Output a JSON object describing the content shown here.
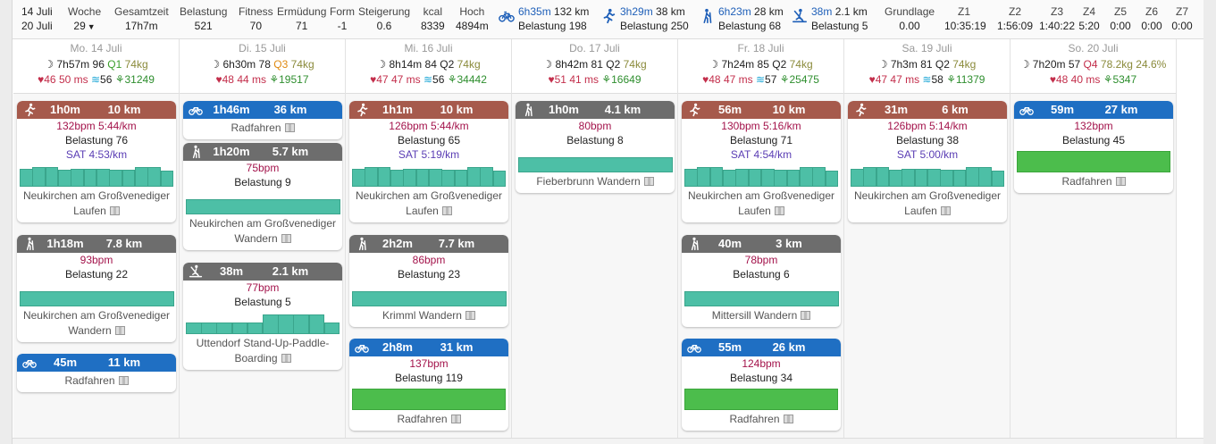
{
  "summary": {
    "dates": {
      "from": "14 Juli",
      "to": "20 Juli"
    },
    "woche": {
      "label": "Woche",
      "value": "29"
    },
    "gesamtzeit": {
      "label": "Gesamtzeit",
      "value": "17h7m"
    },
    "belastung": {
      "label": "Belastung",
      "value": "521"
    },
    "fitness": {
      "label": "Fitness",
      "value": "70"
    },
    "ermuedung": {
      "label": "Ermüdung",
      "value": "71"
    },
    "form": {
      "label": "Form",
      "value": "-1"
    },
    "steigerung": {
      "label": "Steigerung",
      "value": "0.6"
    },
    "kcal": {
      "label": "kcal",
      "value": "8339"
    },
    "hoch": {
      "label": "Hoch",
      "value": "4894m"
    },
    "sports": [
      {
        "icon": "bike-icon",
        "time": "6h35m",
        "dist": "132 km",
        "load": "Belastung 198"
      },
      {
        "icon": "run-icon",
        "time": "3h29m",
        "dist": "38 km",
        "load": "Belastung 250"
      },
      {
        "icon": "hike-icon",
        "time": "6h23m",
        "dist": "28 km",
        "load": "Belastung 68"
      },
      {
        "icon": "sup-icon",
        "time": "38m",
        "dist": "2.1 km",
        "load": "Belastung 5"
      }
    ],
    "grundlage": {
      "label": "Grundlage",
      "value": "0.00"
    },
    "zones": [
      {
        "label": "Z1",
        "value": "10:35:19"
      },
      {
        "label": "Z2",
        "value": "1:56:09"
      },
      {
        "label": "Z3",
        "value": "1:40:22"
      },
      {
        "label": "Z4",
        "value": "5:20"
      },
      {
        "label": "Z5",
        "value": "0:00"
      },
      {
        "label": "Z6",
        "value": "0:00"
      },
      {
        "label": "Z7",
        "value": "0:00"
      }
    ]
  },
  "days": [
    {
      "name": "Mo. 14 Juli",
      "sleep": "7h57m",
      "score": "96",
      "q": "Q1",
      "kg": "74kg",
      "hr": "46",
      "hrv": "50 ms",
      "wave": "56",
      "steps": "31249",
      "cards": [
        {
          "type": "run",
          "dur": "1h0m",
          "dist": "10 km",
          "bpm": "132bpm 5:44/km",
          "load": "Belastung 76",
          "sat": "SAT 4:53/km",
          "place": "Neukirchen am Großvenediger",
          "sport": "Laufen"
        },
        {
          "type": "hike",
          "dur": "1h18m",
          "dist": "7.8 km",
          "bpm": "93bpm",
          "load": "Belastung 22",
          "place": "Neukirchen am Großvenediger",
          "sport": "Wandern"
        },
        {
          "type": "bike",
          "dur": "45m",
          "dist": "11 km",
          "place": "",
          "sport": "Radfahren"
        }
      ]
    },
    {
      "name": "Di. 15 Juli",
      "sleep": "6h30m",
      "score": "78",
      "q": "Q3",
      "kg": "74kg",
      "hr": "48",
      "hrv": "44 ms",
      "steps": "19517",
      "cards": [
        {
          "type": "bike",
          "dur": "1h46m",
          "dist": "36 km",
          "place": "",
          "sport": "Radfahren"
        },
        {
          "type": "hike",
          "dur": "1h20m",
          "dist": "5.7 km",
          "bpm": "75bpm",
          "load": "Belastung 9",
          "place": "Neukirchen am Großvenediger",
          "sport": "Wandern"
        },
        {
          "type": "sup",
          "dur": "38m",
          "dist": "2.1 km",
          "bpm": "77bpm",
          "load": "Belastung 5",
          "place": "Uttendorf Stand-Up-Paddle-",
          "sport": "Boarding"
        }
      ]
    },
    {
      "name": "Mi. 16 Juli",
      "sleep": "8h14m",
      "score": "84",
      "q": "Q2",
      "kg": "74kg",
      "hr": "47",
      "hrv": "47 ms",
      "wave": "56",
      "steps": "34442",
      "cards": [
        {
          "type": "run",
          "dur": "1h1m",
          "dist": "10 km",
          "bpm": "126bpm 5:44/km",
          "load": "Belastung 65",
          "sat": "SAT 5:19/km",
          "place": "Neukirchen am Großvenediger",
          "sport": "Laufen"
        },
        {
          "type": "hike",
          "dur": "2h2m",
          "dist": "7.7 km",
          "bpm": "86bpm",
          "load": "Belastung 23",
          "place": "",
          "sport": "Krimml Wandern"
        },
        {
          "type": "bike",
          "dur": "2h8m",
          "dist": "31 km",
          "bpm": "137bpm",
          "load": "Belastung 119",
          "place": "",
          "sport": "Radfahren"
        }
      ]
    },
    {
      "name": "Do. 17 Juli",
      "sleep": "8h42m",
      "score": "81",
      "q": "Q2",
      "kg": "74kg",
      "hr": "51",
      "hrv": "41 ms",
      "steps": "16649",
      "cards": [
        {
          "type": "hike",
          "dur": "1h0m",
          "dist": "4.1 km",
          "bpm": "80bpm",
          "load": "Belastung 8",
          "place": "",
          "sport": "Fieberbrunn Wandern"
        }
      ]
    },
    {
      "name": "Fr. 18 Juli",
      "sleep": "7h24m",
      "score": "85",
      "q": "Q2",
      "kg": "74kg",
      "hr": "48",
      "hrv": "47 ms",
      "wave": "57",
      "steps": "25475",
      "cards": [
        {
          "type": "run",
          "dur": "56m",
          "dist": "10 km",
          "bpm": "130bpm 5:16/km",
          "load": "Belastung 71",
          "sat": "SAT 4:54/km",
          "place": "Neukirchen am Großvenediger",
          "sport": "Laufen"
        },
        {
          "type": "hike",
          "dur": "40m",
          "dist": "3 km",
          "bpm": "78bpm",
          "load": "Belastung 6",
          "place": "",
          "sport": "Mittersill Wandern"
        },
        {
          "type": "bike",
          "dur": "55m",
          "dist": "26 km",
          "bpm": "124bpm",
          "load": "Belastung 34",
          "place": "",
          "sport": "Radfahren"
        }
      ]
    },
    {
      "name": "Sa. 19 Juli",
      "sleep": "7h3m",
      "score": "81",
      "q": "Q2",
      "kg": "74kg",
      "hr": "47",
      "hrv": "47 ms",
      "wave": "58",
      "steps": "11379",
      "cards": [
        {
          "type": "run",
          "dur": "31m",
          "dist": "6 km",
          "bpm": "126bpm 5:14/km",
          "load": "Belastung 38",
          "sat": "SAT 5:00/km",
          "place": "Neukirchen am Großvenediger",
          "sport": "Laufen"
        }
      ]
    },
    {
      "name": "So. 20 Juli",
      "sleep": "7h20m",
      "score": "57",
      "q": "Q4",
      "kg": "78.2kg",
      "bf": "24.6%",
      "hr": "48",
      "hrv": "40 ms",
      "steps": "5347",
      "cards": [
        {
          "type": "bike",
          "dur": "59m",
          "dist": "27 km",
          "bpm": "132bpm",
          "load": "Belastung 45",
          "place": "",
          "sport": "Radfahren"
        }
      ]
    }
  ],
  "colors": {
    "run": "#a65a4c",
    "hike": "#6d6d6d",
    "bike": "#1f6fc3",
    "chart_teal": "#4dbfa6",
    "chart_green": "#4cbd4c",
    "bpm": "#a3134b",
    "sat": "#5a3db4"
  }
}
